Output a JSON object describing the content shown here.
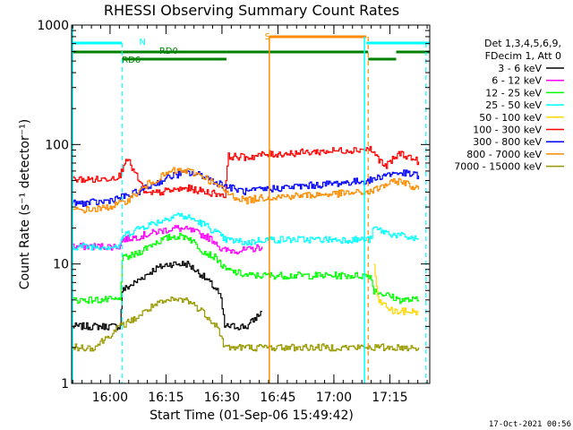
{
  "chart_data": {
    "type": "line",
    "title": "RHESSI Observing Summary Count Rates",
    "xlabel": "Start Time (01-Sep-06 15:49:42)",
    "ylabel": "Count Rate (s⁻¹ detector⁻¹)",
    "y_scale": "log",
    "ylim": [
      1,
      1000
    ],
    "xlim_minutes": [
      0,
      96
    ],
    "x_ticks": [
      {
        "label": "16:00",
        "t": 10.3
      },
      {
        "label": "16:15",
        "t": 25.3
      },
      {
        "label": "16:30",
        "t": 40.3
      },
      {
        "label": "16:45",
        "t": 55.3
      },
      {
        "label": "17:00",
        "t": 70.3
      },
      {
        "label": "17:15",
        "t": 85.3
      }
    ],
    "y_ticks": [
      {
        "label": "1",
        "v": 1
      },
      {
        "label": "10",
        "v": 10
      },
      {
        "label": "100",
        "v": 100
      },
      {
        "label": "1000",
        "v": 1000
      }
    ],
    "legend_header": [
      "Det 1,3,4,5,6,9,",
      "FDecim 1, Att 0"
    ],
    "series": [
      {
        "name": "3 - 6 keV",
        "color": "#000000",
        "points": [
          [
            0,
            3
          ],
          [
            6,
            3
          ],
          [
            13,
            3
          ],
          [
            13.5,
            6
          ],
          [
            17,
            7
          ],
          [
            22,
            9
          ],
          [
            26,
            10
          ],
          [
            31,
            10
          ],
          [
            35,
            8
          ],
          [
            39,
            6
          ],
          [
            40,
            5
          ],
          [
            41,
            3
          ],
          [
            47,
            3
          ],
          [
            51,
            4
          ]
        ]
      },
      {
        "name": "6 - 12 keV",
        "color": "#ff00ff",
        "points": [
          [
            0,
            14
          ],
          [
            8,
            14
          ],
          [
            13,
            14
          ],
          [
            13.5,
            16
          ],
          [
            18,
            17
          ],
          [
            24,
            19
          ],
          [
            28,
            20
          ],
          [
            32,
            19
          ],
          [
            36,
            17
          ],
          [
            39,
            15
          ],
          [
            40,
            13
          ],
          [
            47,
            13
          ],
          [
            51,
            14
          ]
        ]
      },
      {
        "name": "12 - 25 keV",
        "color": "#00ff00",
        "points": [
          [
            0,
            5
          ],
          [
            6,
            5
          ],
          [
            13,
            5
          ],
          [
            13.5,
            11
          ],
          [
            17,
            12
          ],
          [
            22,
            15
          ],
          [
            27,
            17
          ],
          [
            31,
            17
          ],
          [
            35,
            13
          ],
          [
            39,
            11
          ],
          [
            41,
            9
          ],
          [
            47,
            8
          ],
          [
            51,
            8
          ],
          [
            80,
            8
          ],
          [
            81,
            6
          ],
          [
            88,
            5
          ],
          [
            93,
            5
          ]
        ]
      },
      {
        "name": "25 - 50 keV",
        "color": "#00ffff",
        "points": [
          [
            0,
            14
          ],
          [
            8,
            14
          ],
          [
            13,
            14
          ],
          [
            13.5,
            17
          ],
          [
            18,
            20
          ],
          [
            24,
            23
          ],
          [
            28,
            26
          ],
          [
            32,
            24
          ],
          [
            36,
            21
          ],
          [
            39,
            18
          ],
          [
            41,
            16
          ],
          [
            47,
            15
          ],
          [
            51,
            16
          ],
          [
            80,
            16
          ],
          [
            81,
            20
          ],
          [
            85,
            18
          ],
          [
            93,
            16
          ]
        ]
      },
      {
        "name": "50 - 100 keV",
        "color": "#ffd700",
        "points": [
          [
            81,
            10
          ],
          [
            82,
            5
          ],
          [
            86,
            4
          ],
          [
            93,
            4
          ]
        ]
      },
      {
        "name": "100 - 300 keV",
        "color": "#ff0000",
        "points": [
          [
            0,
            51
          ],
          [
            8,
            51
          ],
          [
            13,
            55
          ],
          [
            14.5,
            79
          ],
          [
            20,
            38
          ],
          [
            26,
            41
          ],
          [
            31,
            43
          ],
          [
            36,
            40
          ],
          [
            41,
            38
          ],
          [
            42,
            80
          ],
          [
            47,
            78
          ],
          [
            51,
            82
          ],
          [
            80,
            92
          ],
          [
            84,
            65
          ],
          [
            88,
            85
          ],
          [
            93,
            72
          ]
        ]
      },
      {
        "name": "300 - 800 keV",
        "color": "#0000ff",
        "points": [
          [
            0,
            32
          ],
          [
            8,
            33
          ],
          [
            13,
            36
          ],
          [
            16,
            38
          ],
          [
            21,
            45
          ],
          [
            27,
            55
          ],
          [
            31,
            58
          ],
          [
            35,
            55
          ],
          [
            39,
            48
          ],
          [
            43,
            43
          ],
          [
            47,
            40
          ],
          [
            51,
            42
          ],
          [
            80,
            50
          ],
          [
            84,
            56
          ],
          [
            88,
            58
          ],
          [
            93,
            55
          ]
        ]
      },
      {
        "name": "800 - 7000 keV",
        "color": "#ff8c00",
        "points": [
          [
            0,
            28
          ],
          [
            8,
            29
          ],
          [
            13,
            32
          ],
          [
            16,
            36
          ],
          [
            21,
            48
          ],
          [
            27,
            60
          ],
          [
            31,
            60
          ],
          [
            35,
            55
          ],
          [
            39,
            45
          ],
          [
            43,
            37
          ],
          [
            47,
            34
          ],
          [
            51,
            36
          ],
          [
            80,
            40
          ],
          [
            84,
            46
          ],
          [
            88,
            50
          ],
          [
            93,
            42
          ]
        ]
      },
      {
        "name": "7000 - 15000 keV",
        "color": "#999900",
        "points": [
          [
            0,
            2
          ],
          [
            6,
            2
          ],
          [
            13,
            3
          ],
          [
            17,
            3.5
          ],
          [
            22,
            4.5
          ],
          [
            27,
            5
          ],
          [
            31,
            5
          ],
          [
            35,
            4
          ],
          [
            39,
            3
          ],
          [
            41,
            2
          ],
          [
            47,
            2
          ],
          [
            51,
            2
          ],
          [
            80,
            2
          ],
          [
            84,
            2
          ],
          [
            88,
            2
          ],
          [
            93,
            2
          ]
        ]
      }
    ],
    "annotations": {
      "markers": [
        {
          "label": "N",
          "color": "#00ffff"
        },
        {
          "label": "RD0",
          "color": "#008000"
        },
        {
          "label": "RD6",
          "color": "#008000"
        },
        {
          "label": "S",
          "color": "#ff8c00"
        }
      ],
      "timestamp": "17-Oct-2021 00:56"
    }
  }
}
